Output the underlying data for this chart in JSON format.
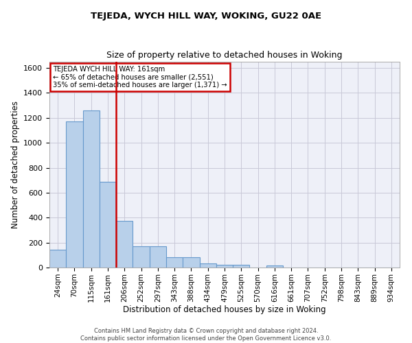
{
  "title": "TEJEDA, WYCH HILL WAY, WOKING, GU22 0AE",
  "subtitle": "Size of property relative to detached houses in Woking",
  "xlabel": "Distribution of detached houses by size in Woking",
  "ylabel": "Number of detached properties",
  "bar_labels": [
    "24sqm",
    "70sqm",
    "115sqm",
    "161sqm",
    "206sqm",
    "252sqm",
    "297sqm",
    "343sqm",
    "388sqm",
    "434sqm",
    "479sqm",
    "525sqm",
    "570sqm",
    "616sqm",
    "661sqm",
    "707sqm",
    "752sqm",
    "798sqm",
    "843sqm",
    "889sqm",
    "934sqm"
  ],
  "bar_values": [
    145,
    1170,
    1260,
    690,
    375,
    170,
    170,
    80,
    80,
    35,
    20,
    20,
    0,
    15,
    0,
    0,
    0,
    0,
    0,
    0,
    0
  ],
  "bar_color": "#b8d0ea",
  "bar_edgecolor": "#6699cc",
  "vline_x": 3.5,
  "annotation_line1": "TEJEDA WYCH HILL WAY: 161sqm",
  "annotation_line2": "← 65% of detached houses are smaller (2,551)",
  "annotation_line3": "35% of semi-detached houses are larger (1,371) →",
  "annotation_box_color": "#ffffff",
  "annotation_box_edgecolor": "#cc0000",
  "vline_color": "#cc0000",
  "ylim": [
    0,
    1650
  ],
  "yticks": [
    0,
    200,
    400,
    600,
    800,
    1000,
    1200,
    1400,
    1600
  ],
  "grid_color": "#c8c8d8",
  "background_color": "#eef0f8",
  "footer1": "Contains HM Land Registry data © Crown copyright and database right 2024.",
  "footer2": "Contains public sector information licensed under the Open Government Licence v3.0."
}
